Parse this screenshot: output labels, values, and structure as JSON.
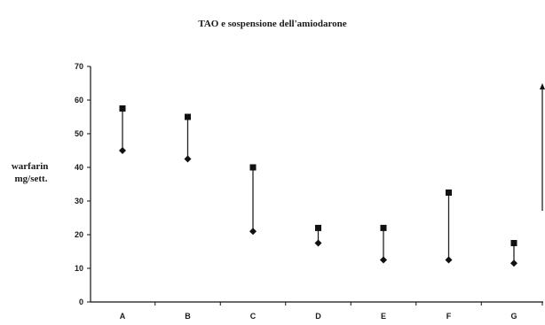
{
  "chart_data": {
    "type": "range",
    "title": "TAO e sospensione dell'amiodarone",
    "ylabel_lines": [
      "warfarin",
      "mg/sett."
    ],
    "xlabel": "",
    "ylim": [
      0,
      70
    ],
    "yticks": [
      0,
      10,
      20,
      30,
      40,
      50,
      60,
      70
    ],
    "categories": [
      "A",
      "B",
      "C",
      "D",
      "E",
      "F",
      "G"
    ],
    "series": [
      {
        "marker": "diamond",
        "values": [
          45,
          42.5,
          21,
          17.5,
          12.5,
          12.5,
          11.5
        ]
      },
      {
        "marker": "square",
        "values": [
          57.5,
          55,
          40,
          22,
          22,
          32.5,
          17.5
        ]
      }
    ],
    "grid": false,
    "colors": {
      "ink": "#111111"
    }
  }
}
